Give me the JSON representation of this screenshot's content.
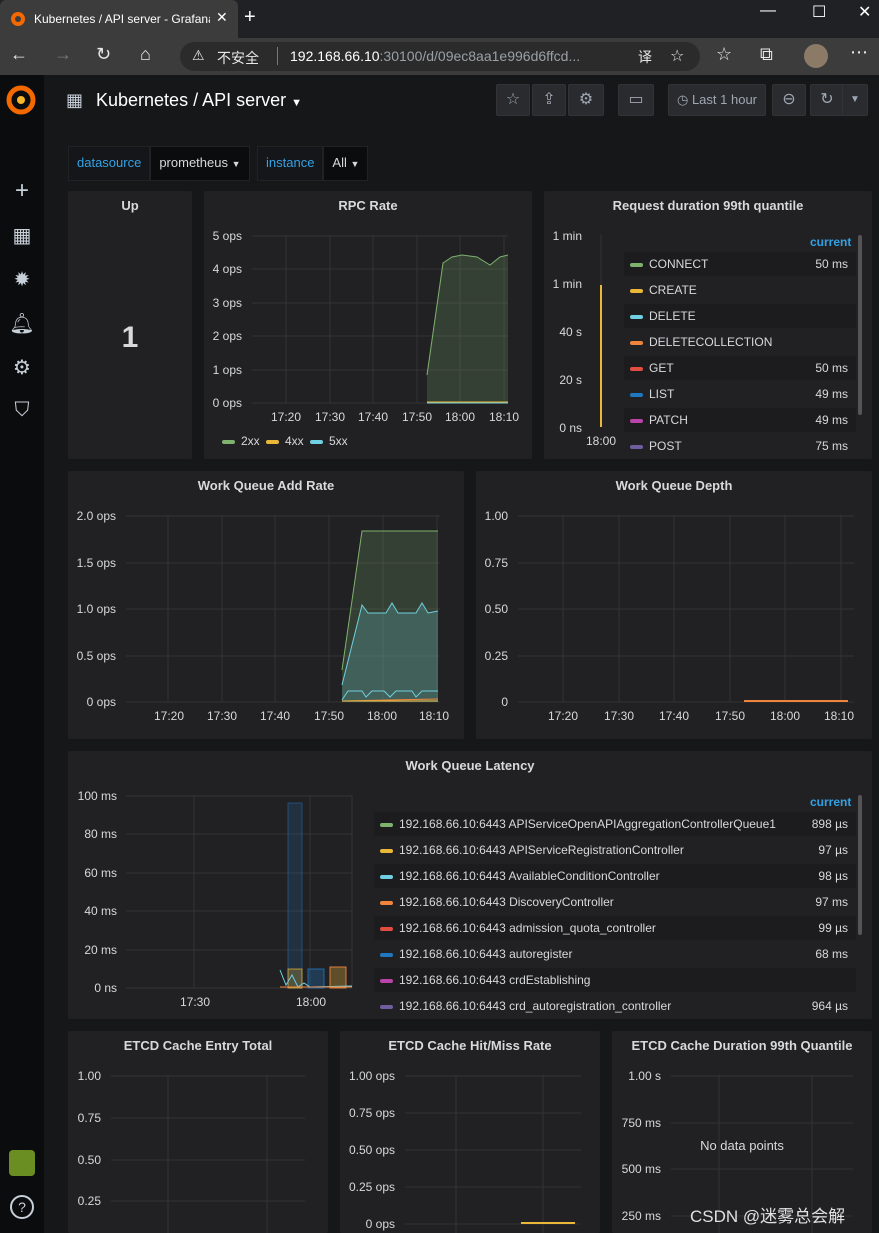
{
  "browser": {
    "tab_title": "Kubernetes / API server - Grafana",
    "tab_close": "✕",
    "new_tab": "+",
    "minimize": "—",
    "maximize": "☐",
    "close": "✕",
    "security_warning": "不安全",
    "url_host": "192.168.66.10",
    "url_rest": ":30100/d/09ec8aa1e996d6ffcd..."
  },
  "dashboard": {
    "title": "Kubernetes / API server",
    "time_range": "Last 1 hour"
  },
  "variables": [
    {
      "label": "datasource",
      "value": "prometheus"
    },
    {
      "label": "instance",
      "value": "All"
    }
  ],
  "colors": {
    "green": "#7eb26d",
    "yellow": "#eab839",
    "blue": "#6ed0e0",
    "orange": "#ef843c",
    "red": "#e24d42",
    "darkblue": "#1f78c1",
    "pink": "#ba43a9",
    "purple": "#705da0",
    "accent": "#33a2e5"
  },
  "panels": {
    "up": {
      "title": "Up",
      "value": "1"
    },
    "rpc": {
      "title": "RPC Rate",
      "yticks": [
        "5 ops",
        "4 ops",
        "3 ops",
        "2 ops",
        "1 ops",
        "0 ops"
      ],
      "xticks": [
        "17:20",
        "17:30",
        "17:40",
        "17:50",
        "18:00",
        "18:10"
      ],
      "legend": [
        "2xx",
        "4xx",
        "5xx"
      ]
    },
    "reqdur": {
      "title": "Request duration 99th quantile",
      "yticks": [
        "1 min",
        "1 min",
        "40 s",
        "20 s",
        "0 ns"
      ],
      "xticks": [
        "18:00"
      ],
      "current_header": "current",
      "legend": [
        {
          "name": "CONNECT",
          "value": "50 ms",
          "color": "#7eb26d"
        },
        {
          "name": "CREATE",
          "value": "",
          "color": "#eab839"
        },
        {
          "name": "DELETE",
          "value": "",
          "color": "#6ed0e0"
        },
        {
          "name": "DELETECOLLECTION",
          "value": "",
          "color": "#ef843c"
        },
        {
          "name": "GET",
          "value": "50 ms",
          "color": "#e24d42"
        },
        {
          "name": "LIST",
          "value": "49 ms",
          "color": "#1f78c1"
        },
        {
          "name": "PATCH",
          "value": "49 ms",
          "color": "#ba43a9"
        },
        {
          "name": "POST",
          "value": "75 ms",
          "color": "#705da0"
        }
      ]
    },
    "wqadd": {
      "title": "Work Queue Add Rate",
      "yticks": [
        "2.0 ops",
        "1.5 ops",
        "1.0 ops",
        "0.5 ops",
        "0 ops"
      ],
      "xticks": [
        "17:20",
        "17:30",
        "17:40",
        "17:50",
        "18:00",
        "18:10"
      ]
    },
    "wqdepth": {
      "title": "Work Queue Depth",
      "yticks": [
        "1.00",
        "0.75",
        "0.50",
        "0.25",
        "0"
      ],
      "xticks": [
        "17:20",
        "17:30",
        "17:40",
        "17:50",
        "18:00",
        "18:10"
      ]
    },
    "wqlat": {
      "title": "Work Queue Latency",
      "yticks": [
        "100 ms",
        "80 ms",
        "60 ms",
        "40 ms",
        "20 ms",
        "0 ns"
      ],
      "xticks": [
        "17:30",
        "18:00"
      ],
      "current_header": "current",
      "legend": [
        {
          "name": "192.168.66.10:6443 APIServiceOpenAPIAggregationControllerQueue1",
          "value": "898 µs",
          "color": "#7eb26d"
        },
        {
          "name": "192.168.66.10:6443 APIServiceRegistrationController",
          "value": "97 µs",
          "color": "#eab839"
        },
        {
          "name": "192.168.66.10:6443 AvailableConditionController",
          "value": "98 µs",
          "color": "#6ed0e0"
        },
        {
          "name": "192.168.66.10:6443 DiscoveryController",
          "value": "97 ms",
          "color": "#ef843c"
        },
        {
          "name": "192.168.66.10:6443 admission_quota_controller",
          "value": "99 µs",
          "color": "#e24d42"
        },
        {
          "name": "192.168.66.10:6443 autoregister",
          "value": "68 ms",
          "color": "#1f78c1"
        },
        {
          "name": "192.168.66.10:6443 crdEstablishing",
          "value": "",
          "color": "#ba43a9"
        },
        {
          "name": "192.168.66.10:6443 crd_autoregistration_controller",
          "value": "964 µs",
          "color": "#705da0"
        }
      ]
    },
    "etcdtotal": {
      "title": "ETCD Cache Entry Total",
      "yticks": [
        "1.00",
        "0.75",
        "0.50",
        "0.25"
      ]
    },
    "etcdhit": {
      "title": "ETCD Cache Hit/Miss Rate",
      "yticks": [
        "1.00 ops",
        "0.75 ops",
        "0.50 ops",
        "0.25 ops",
        "0 ops"
      ]
    },
    "etcddur": {
      "title": "ETCD Cache Duration 99th Quantile",
      "yticks": [
        "1.00 s",
        "750 ms",
        "500 ms",
        "250 ms"
      ],
      "no_data": "No data points"
    }
  },
  "watermark": "CSDN @迷雾总会解"
}
